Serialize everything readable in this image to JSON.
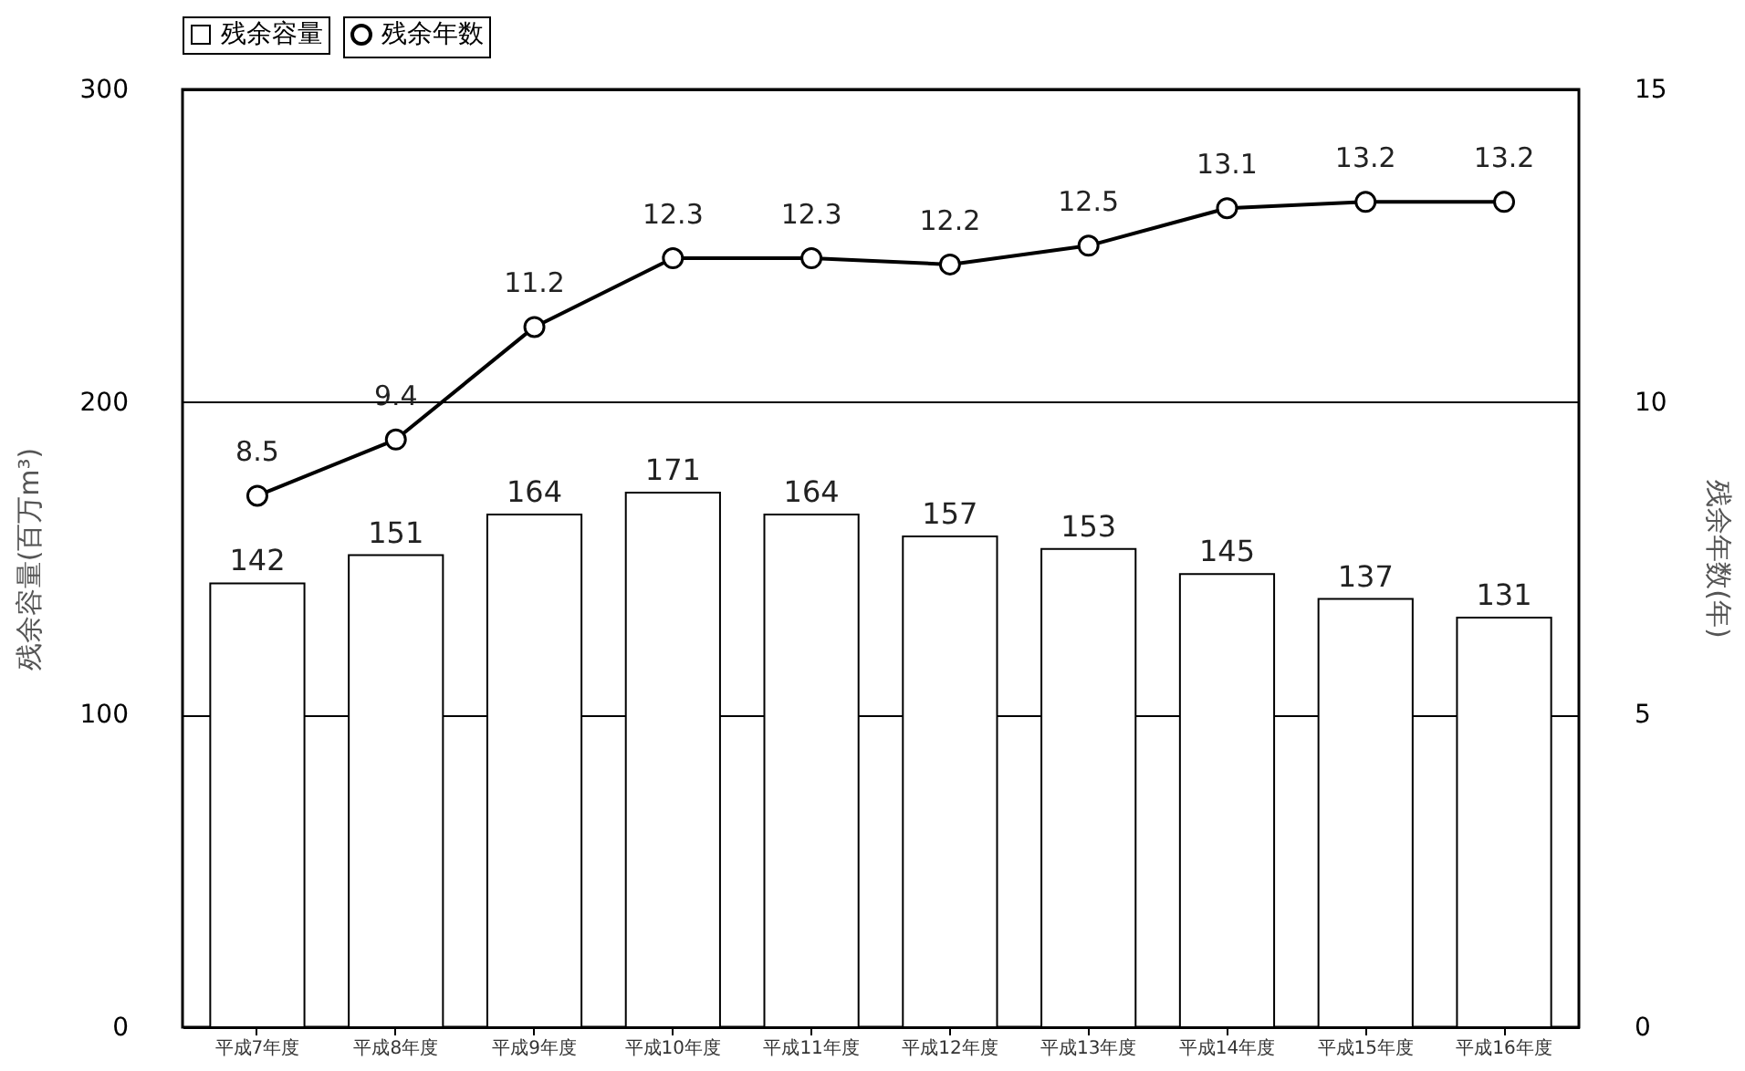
{
  "chart_data": {
    "type": "bar",
    "categories": [
      "平成7年度",
      "平成8年度",
      "平成9年度",
      "平成10年度",
      "平成11年度",
      "平成12年度",
      "平成13年度",
      "平成14年度",
      "平成15年度",
      "平成16年度"
    ],
    "series": [
      {
        "name": "残余容量",
        "color": "#ffffff",
        "values": [
          142,
          151,
          164,
          171,
          164,
          157,
          153,
          145,
          137,
          131
        ]
      },
      {
        "name": "残余年数",
        "type": "line",
        "axis": "y2",
        "color": "#000000",
        "values": [
          8.5,
          9.4,
          11.2,
          12.3,
          12.3,
          12.2,
          12.5,
          13.1,
          13.2,
          13.2
        ]
      }
    ],
    "ylabel": "残余容量(百万m³)",
    "y2label": "残余年数(年)",
    "ylim": [
      0,
      300
    ],
    "yticks": [
      0,
      100,
      200,
      300
    ],
    "y2lim": [
      0,
      15
    ],
    "y2ticks": [
      0,
      5,
      10,
      15
    ],
    "grid": "y",
    "legend": "top",
    "marker": "circle",
    "line_style": "solid",
    "data_labels": true
  }
}
